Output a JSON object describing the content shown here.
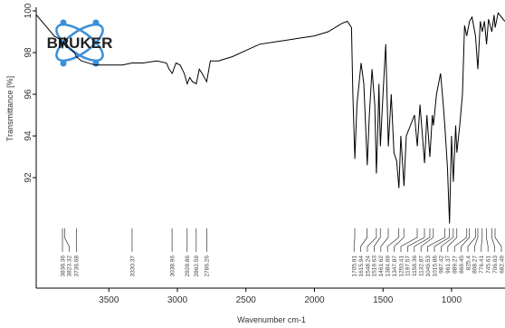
{
  "logo": "BRUKER",
  "chart_data": {
    "type": "line",
    "y_label": "Transmittance [%]",
    "x_label": "Wavenumber cm-1",
    "color": "#000000",
    "xlim": [
      4030,
      610
    ],
    "ylim": [
      86.7,
      100
    ],
    "xticks": [
      3500,
      3000,
      2500,
      2000,
      1500,
      1000
    ],
    "yticks": [
      92,
      94,
      96,
      98,
      100
    ],
    "x": [
      4028,
      3950,
      3900,
      3850,
      3838,
      3823,
      3800,
      3750,
      3736,
      3700,
      3600,
      3500,
      3400,
      3330,
      3250,
      3150,
      3080,
      3060,
      3038,
      3010,
      2980,
      2950,
      2928,
      2910,
      2890,
      2862,
      2840,
      2820,
      2786,
      2760,
      2700,
      2600,
      2500,
      2400,
      2300,
      2200,
      2100,
      2000,
      1900,
      1800,
      1760,
      1730,
      1720,
      1705,
      1690,
      1660,
      1640,
      1615,
      1600,
      1580,
      1560,
      1548,
      1535,
      1530,
      1519,
      1500,
      1480,
      1461,
      1440,
      1420,
      1400,
      1384,
      1370,
      1347,
      1330,
      1300,
      1270,
      1250,
      1230,
      1197,
      1180,
      1158,
      1140,
      1132,
      1110,
      1080,
      1060,
      1049,
      1030,
      1015,
      1000,
      987,
      970,
      961,
      940,
      920,
      905,
      889,
      869,
      850,
      825,
      808,
      790,
      776,
      760,
      745,
      730,
      706,
      690,
      682,
      660,
      611
    ],
    "values": [
      99.8,
      99.2,
      98.8,
      98.6,
      98.2,
      98.7,
      98.3,
      98.0,
      97.8,
      97.6,
      97.4,
      97.4,
      97.4,
      97.5,
      97.5,
      97.6,
      97.5,
      97.2,
      97.0,
      97.5,
      97.4,
      97.0,
      96.5,
      96.8,
      96.6,
      96.5,
      97.2,
      97.0,
      96.6,
      97.6,
      97.6,
      97.8,
      98.1,
      98.4,
      98.5,
      98.6,
      98.7,
      98.8,
      99.0,
      99.4,
      99.5,
      99.2,
      96.0,
      92.9,
      95.5,
      97.5,
      96.5,
      92.6,
      95.0,
      97.2,
      95.5,
      92.2,
      95.0,
      96.5,
      93.5,
      96.0,
      98.4,
      93.5,
      96.0,
      93.2,
      92.8,
      91.5,
      94.0,
      91.6,
      94.0,
      94.5,
      95.0,
      93.5,
      95.5,
      92.7,
      95.0,
      93.0,
      95.0,
      94.5,
      96.0,
      97.0,
      95.5,
      94.5,
      92.5,
      89.8,
      94.0,
      91.8,
      94.5,
      93.2,
      94.5,
      96.0,
      99.3,
      98.8,
      99.5,
      99.7,
      98.8,
      97.2,
      99.5,
      99.0,
      99.5,
      98.4,
      99.6,
      99.0,
      99.8,
      99.2,
      99.9,
      99.5
    ],
    "peaks": [
      3838.36,
      3823.32,
      3736.68,
      3330.37,
      3038.96,
      2928.86,
      2862.59,
      2786.26,
      1705.91,
      1615.94,
      1548.24,
      1519.63,
      1461.62,
      1384.69,
      1347.87,
      1250.41,
      1197.57,
      1158.36,
      1132.87,
      1049.53,
      1015.86,
      987.42,
      961.37,
      889.27,
      869.45,
      825.4,
      808.27,
      776.41,
      745.61,
      706.63,
      682.49
    ]
  }
}
